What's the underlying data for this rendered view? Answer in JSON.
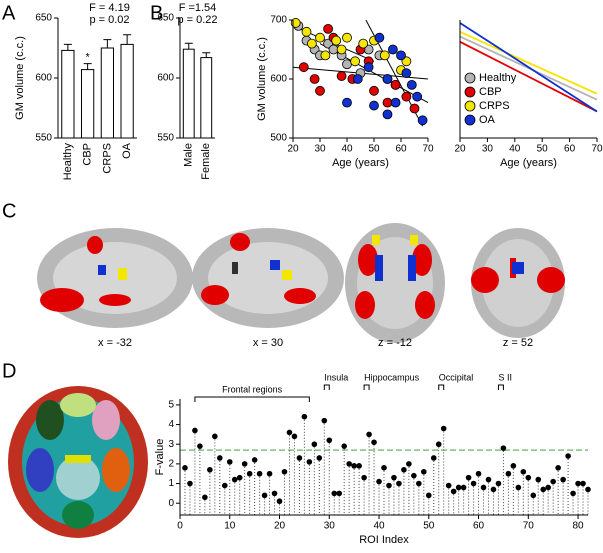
{
  "panels": [
    "A",
    "B",
    "C",
    "D"
  ],
  "slices": [
    "x = -32",
    "x = 30",
    "z = -12",
    "z = 52"
  ],
  "chart_data": [
    {
      "type": "bar",
      "ylabel": "GM volume (c.c.)",
      "categories": [
        "Healthy",
        "CBP",
        "CRPS",
        "OA"
      ],
      "values": [
        623,
        607,
        625,
        628
      ],
      "errors": [
        5,
        5,
        7,
        8
      ],
      "color": "#ffffff",
      "ylim": [
        550,
        650
      ],
      "yticks": [
        550,
        600,
        650
      ],
      "annotations": [
        "F = 4.19",
        "p = 0.02"
      ],
      "star": "*",
      "star_category": "CBP"
    },
    {
      "type": "bar",
      "categories": [
        "Male",
        "Female"
      ],
      "values": [
        624,
        617
      ],
      "errors": [
        5,
        4
      ],
      "color": "#ffffff",
      "ylim": [
        550,
        650
      ],
      "yticks": [
        550,
        600,
        650
      ],
      "annotations": [
        "F =1.54",
        "p = 0.22"
      ]
    },
    {
      "type": "scatter",
      "xlabel": "Age (years)",
      "ylabel": "GM volume (c.c.)",
      "xlim": [
        20,
        70
      ],
      "ylim": [
        500,
        700
      ],
      "xticks": [
        20,
        30,
        40,
        50,
        60,
        70
      ],
      "yticks": [
        500,
        600,
        700
      ],
      "series": [
        {
          "name": "Healthy",
          "color": "#b4b4b4",
          "x": [
            22,
            25,
            28,
            30,
            33,
            35,
            38,
            40,
            45,
            48,
            52,
            55,
            58
          ],
          "y": [
            690,
            665,
            650,
            640,
            660,
            650,
            640,
            625,
            610,
            650,
            640,
            600,
            590
          ]
        },
        {
          "name": "CBP",
          "color": "#e00000",
          "x": [
            24,
            28,
            30,
            33,
            35,
            38,
            42,
            45,
            48,
            50,
            55,
            58,
            62,
            65
          ],
          "y": [
            620,
            600,
            580,
            685,
            670,
            605,
            600,
            650,
            630,
            580,
            560,
            590,
            570,
            550
          ]
        },
        {
          "name": "CRPS",
          "color": "#f5e600",
          "x": [
            21,
            25,
            27,
            30,
            32,
            36,
            38,
            40,
            43,
            46,
            50,
            54,
            60,
            62
          ],
          "y": [
            695,
            680,
            660,
            670,
            640,
            665,
            650,
            670,
            630,
            660,
            665,
            640,
            615,
            630
          ]
        },
        {
          "name": "OA",
          "color": "#1030d0",
          "x": [
            40,
            44,
            48,
            50,
            52,
            55,
            57,
            58,
            60,
            62,
            64,
            66,
            68,
            55
          ],
          "y": [
            560,
            600,
            620,
            555,
            670,
            600,
            650,
            560,
            640,
            610,
            590,
            570,
            530,
            540
          ]
        }
      ],
      "trend_lines": [
        {
          "x": [
            20,
            50
          ],
          "y": [
            690,
            630
          ]
        },
        {
          "x": [
            47,
            68
          ],
          "y": [
            700,
            520
          ]
        },
        {
          "x": [
            20,
            70
          ],
          "y": [
            620,
            600
          ]
        },
        {
          "x": [
            30,
            70
          ],
          "y": [
            660,
            560
          ]
        }
      ],
      "trend_color": "#000000"
    },
    {
      "type": "line",
      "xlabel": "Age (years)",
      "xlim": [
        20,
        70
      ],
      "ylim": [
        500,
        700
      ],
      "xticks": [
        20,
        30,
        40,
        50,
        60,
        70
      ],
      "x": [
        20,
        70
      ],
      "legend": "lower left",
      "series": [
        {
          "name": "Healthy",
          "color": "#b4b4b4",
          "values": [
            672,
            565
          ]
        },
        {
          "name": "CBP",
          "color": "#e00000",
          "values": [
            663,
            545
          ]
        },
        {
          "name": "CRPS",
          "color": "#f5e600",
          "values": [
            680,
            575
          ]
        },
        {
          "name": "OA",
          "color": "#1030d0",
          "values": [
            695,
            545
          ]
        }
      ]
    },
    {
      "type": "stem",
      "xlabel": "ROI Index",
      "ylabel": "F-value",
      "xlim": [
        0,
        82
      ],
      "ylim": [
        -0.6,
        5.3
      ],
      "xticks": [
        0,
        10,
        20,
        30,
        40,
        50,
        60,
        70,
        80
      ],
      "yticks": [
        0,
        1,
        2,
        3,
        4,
        5
      ],
      "color": "#000000",
      "threshold": 2.7,
      "threshold_color": "#80c080",
      "x": [
        1,
        2,
        3,
        4,
        5,
        6,
        7,
        8,
        9,
        10,
        11,
        12,
        13,
        14,
        15,
        16,
        17,
        18,
        19,
        20,
        21,
        22,
        23,
        24,
        25,
        26,
        27,
        28,
        29,
        30,
        31,
        32,
        33,
        34,
        35,
        36,
        37,
        38,
        39,
        40,
        41,
        42,
        43,
        44,
        45,
        46,
        47,
        48,
        49,
        50,
        51,
        52,
        53,
        54,
        55,
        56,
        57,
        58,
        59,
        60,
        61,
        62,
        63,
        64,
        65,
        66,
        67,
        68,
        69,
        70,
        71,
        72,
        73,
        74,
        75,
        76,
        77,
        78,
        79,
        80,
        81,
        82
      ],
      "values": [
        1.8,
        1.0,
        3.7,
        2.9,
        0.3,
        1.7,
        3.4,
        2.3,
        0.9,
        2.1,
        1.2,
        1.3,
        2.0,
        1.5,
        2.2,
        1.5,
        0.4,
        1.5,
        0.5,
        0.1,
        1.6,
        3.6,
        3.4,
        2.3,
        4.4,
        2.1,
        3.0,
        2.3,
        4.2,
        3.2,
        0.5,
        0.5,
        2.9,
        2.0,
        1.9,
        1.9,
        1.3,
        3.5,
        3.1,
        1.1,
        1.8,
        0.9,
        1.3,
        1.0,
        1.7,
        2.0,
        1.4,
        1.0,
        1.6,
        0.4,
        2.3,
        3.0,
        3.8,
        0.9,
        0.6,
        0.8,
        0.8,
        1.3,
        1.0,
        1.5,
        0.8,
        1.2,
        0.7,
        1.0,
        2.8,
        1.5,
        1.9,
        0.8,
        1.6,
        1.3,
        0.4,
        1.2,
        0.7,
        0.8,
        1.1,
        1.8,
        1.2,
        2.4,
        0.5,
        1.0,
        1.0,
        0.7
      ],
      "regions": [
        {
          "label": "Frontal regions",
          "from": 3,
          "to": 26
        },
        {
          "label": "Insula",
          "from": 29,
          "to": 30
        },
        {
          "label": "Hippocampus",
          "from": 37,
          "to": 38
        },
        {
          "label": "Occipital",
          "from": 52,
          "to": 53
        },
        {
          "label": "S II",
          "from": 64,
          "to": 65
        }
      ]
    }
  ]
}
